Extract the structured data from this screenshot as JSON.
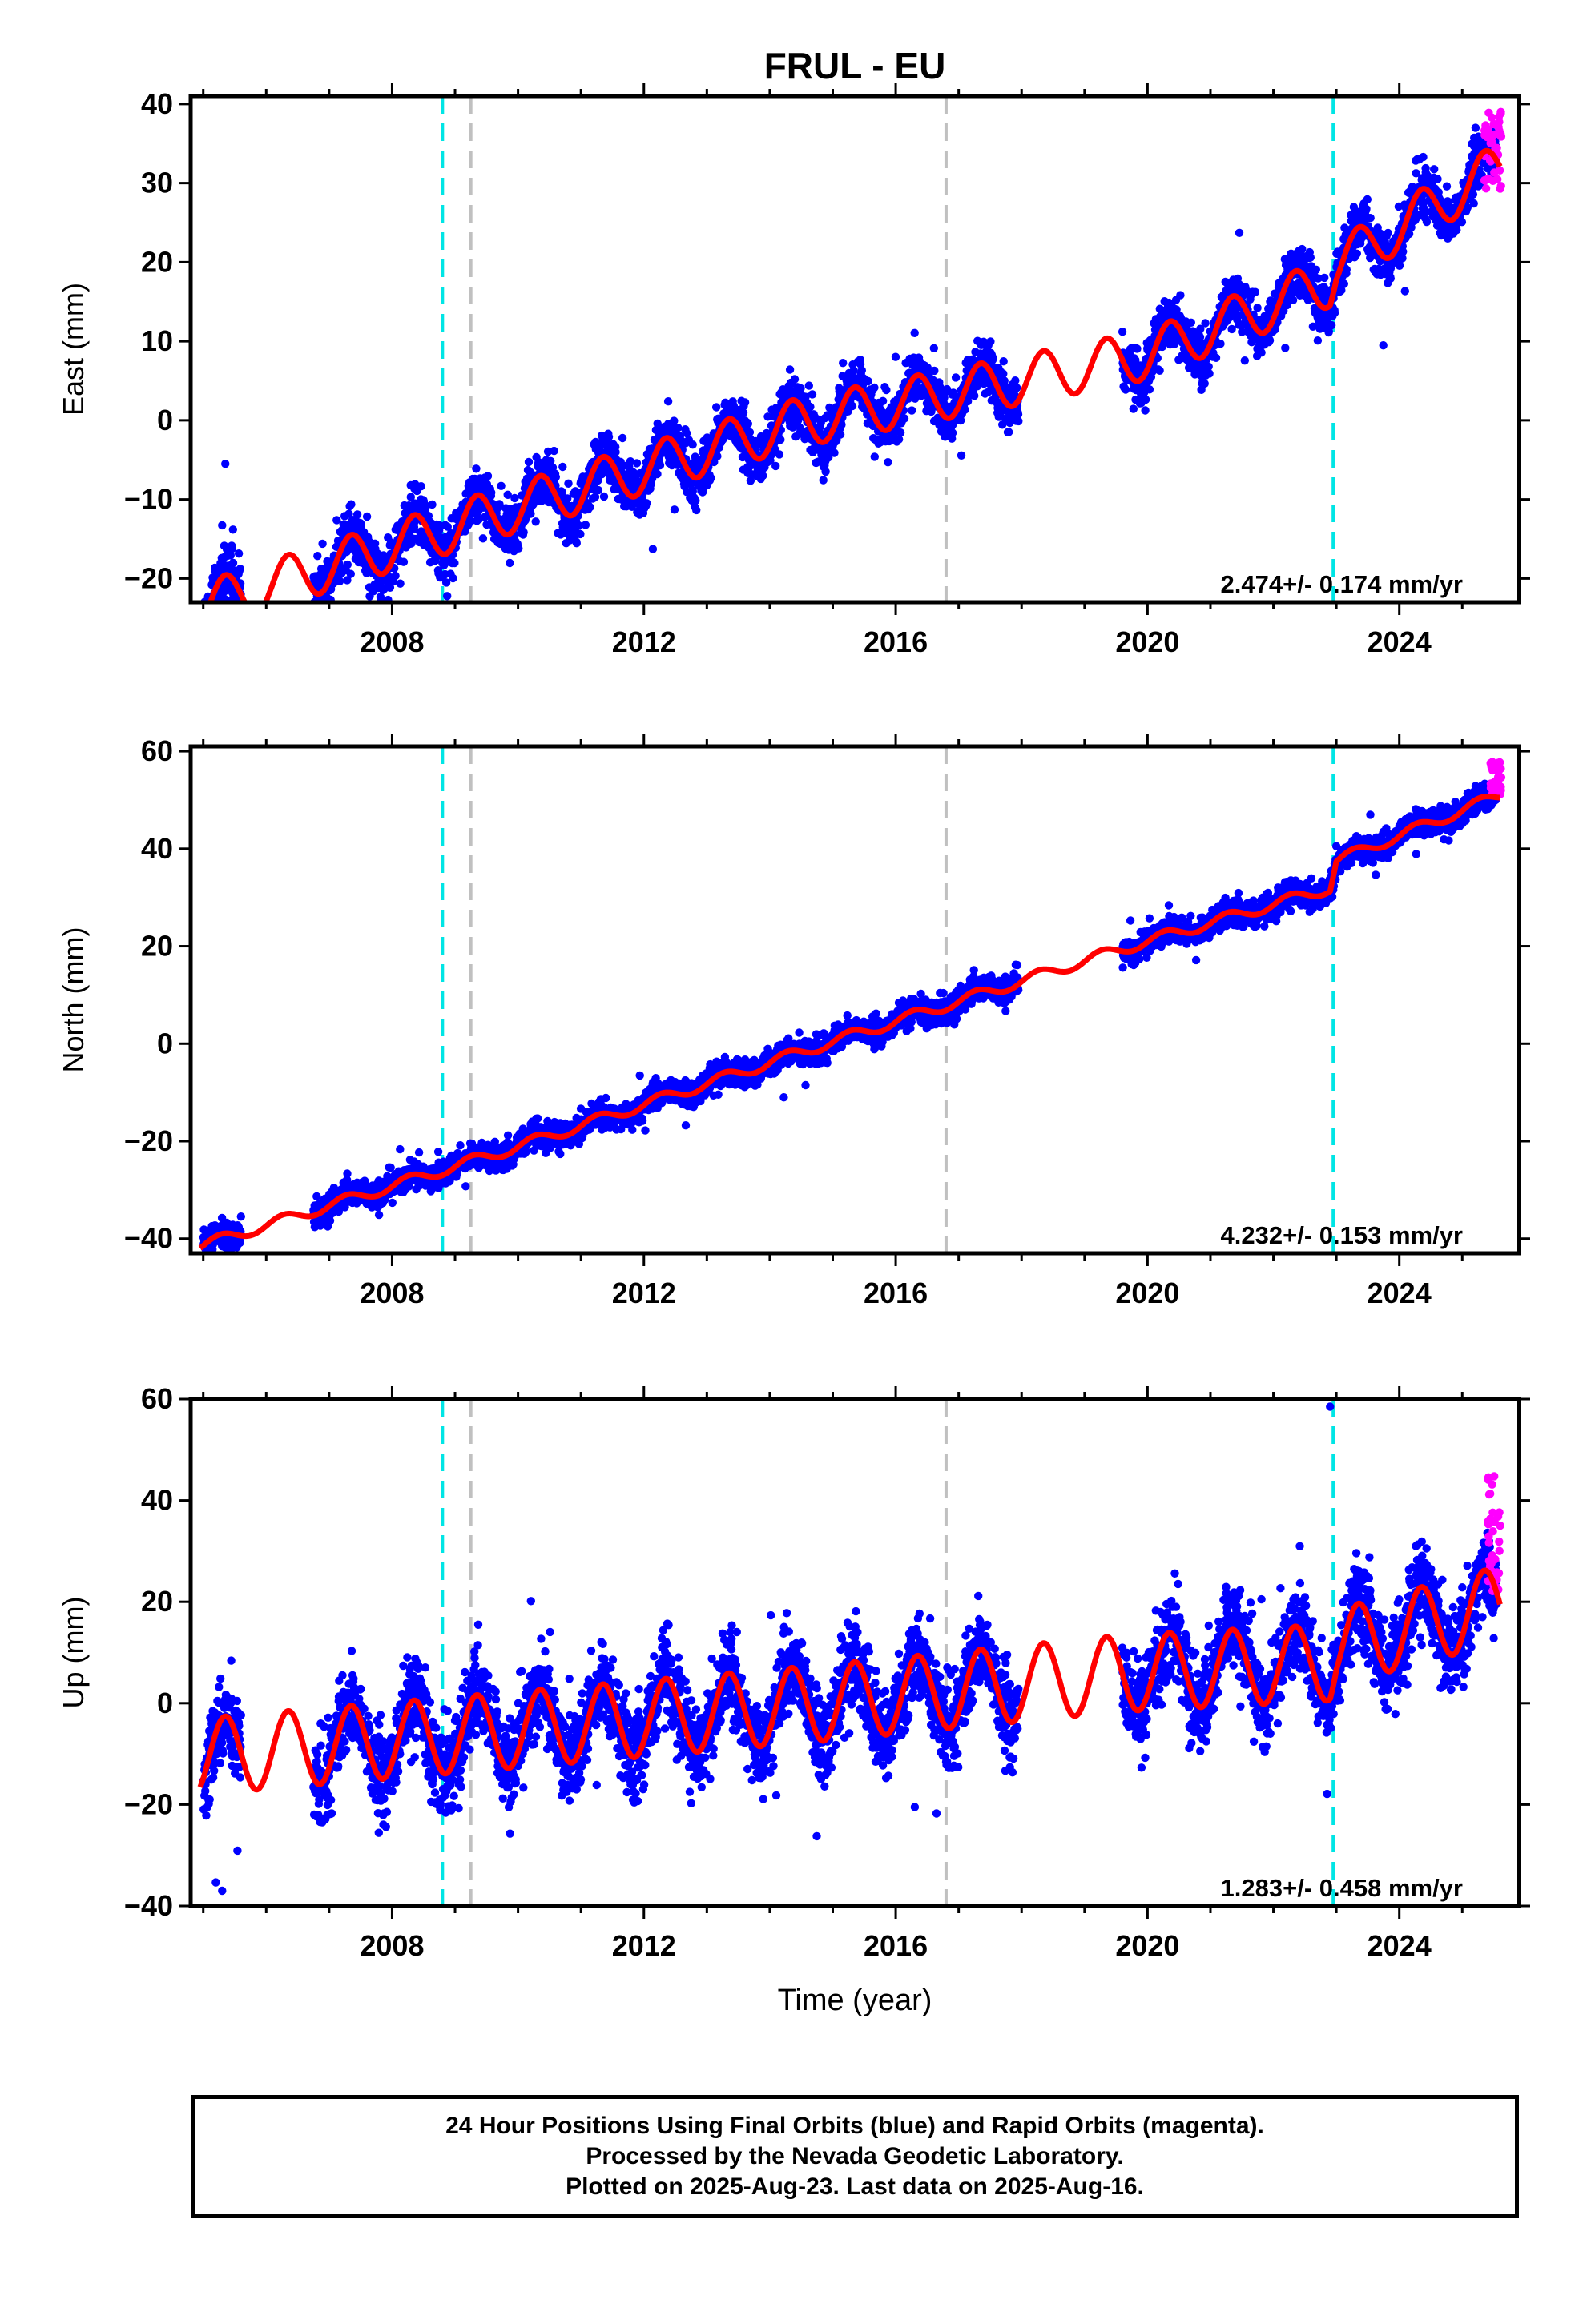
{
  "figure": {
    "title": "FRUL - EU",
    "xlabel": "Time (year)",
    "footer": {
      "line1": "24 Hour Positions Using Final Orbits (blue) and Rapid Orbits (magenta).",
      "line2": "Processed by the Nevada Geodetic Laboratory.",
      "line3": "Plotted on 2025-Aug-23. Last data on 2025-Aug-16."
    }
  },
  "colors": {
    "final_orbits": "#0000ff",
    "rapid_orbits": "#ff00ff",
    "model": "#ff0000",
    "event_cyan": "#00e5e5",
    "event_gray": "#c0c0c0"
  },
  "chart_data": [
    {
      "type": "scatter",
      "component": "east",
      "ylabel": "East (mm)",
      "xlim": [
        2004.8,
        2025.9
      ],
      "ylim": [
        -23,
        41
      ],
      "xticks": [
        2008,
        2012,
        2016,
        2020,
        2024
      ],
      "xtick_labels": [
        "2008",
        "2012",
        "2016",
        "2020",
        "2024"
      ],
      "yticks": [
        -20,
        -10,
        0,
        10,
        20,
        30,
        40
      ],
      "ytick_labels": [
        "−20",
        "−10",
        "0",
        "10",
        "20",
        "30",
        "40"
      ],
      "rate_text": "2.474+/- 0.174 mm/yr",
      "model": {
        "offset": -23.7,
        "breakpoints": [
          [
            2004.95,
            0
          ],
          [
            2006.7,
            4.5
          ],
          [
            2009.9,
            12.5
          ],
          [
            2014.5,
            23.5
          ],
          [
            2017.8,
            28.5
          ],
          [
            2020.0,
            32.0
          ],
          [
            2022.9,
            41.2
          ],
          [
            2023.0,
            43.3
          ],
          [
            2025.6,
            55.8
          ]
        ],
        "amplitude": 3.1,
        "phase": 0.0,
        "offsets": []
      },
      "segments": [
        [
          2005.0,
          2005.6
        ],
        [
          2006.75,
          2017.95
        ],
        [
          2019.6,
          2025.55
        ]
      ],
      "scatter_sigma": 1.6,
      "rapid": {
        "x_range": [
          2025.35,
          2025.62
        ],
        "y_range": [
          29,
          39
        ]
      },
      "outliers": [
        [
          2005.35,
          -5.5
        ]
      ],
      "events": [
        {
          "x": 2008.8,
          "kind": "cyan"
        },
        {
          "x": 2009.25,
          "kind": "gray"
        },
        {
          "x": 2016.8,
          "kind": "gray"
        },
        {
          "x": 2022.95,
          "kind": "cyan"
        }
      ]
    },
    {
      "type": "scatter",
      "component": "north",
      "ylabel": "North (mm)",
      "xlim": [
        2004.8,
        2025.9
      ],
      "ylim": [
        -43,
        61
      ],
      "xticks": [
        2008,
        2012,
        2016,
        2020,
        2024
      ],
      "xtick_labels": [
        "2008",
        "2012",
        "2016",
        "2020",
        "2024"
      ],
      "yticks": [
        -40,
        -20,
        0,
        20,
        40,
        60
      ],
      "ytick_labels": [
        "−40",
        "−20",
        "0",
        "20",
        "40",
        "60"
      ],
      "rate_text": "4.232+/- 0.153 mm/yr",
      "model": {
        "offset": -41.5,
        "breakpoints": [
          [
            2004.95,
            0
          ],
          [
            2009.9,
            20
          ],
          [
            2014.9,
            41.5
          ],
          [
            2019.6,
            61
          ],
          [
            2022.9,
            73.5
          ],
          [
            2023.0,
            79
          ],
          [
            2025.6,
            92.5
          ]
        ],
        "amplitude": 1.1,
        "phase": 0.5,
        "offsets": []
      },
      "segments": [
        [
          2005.0,
          2005.6
        ],
        [
          2006.75,
          2017.95
        ],
        [
          2019.6,
          2025.55
        ]
      ],
      "scatter_sigma": 1.3,
      "rapid": {
        "x_range": [
          2025.45,
          2025.62
        ],
        "y_range": [
          51,
          58
        ]
      },
      "outliers": [],
      "events": [
        {
          "x": 2008.8,
          "kind": "cyan"
        },
        {
          "x": 2009.25,
          "kind": "gray"
        },
        {
          "x": 2016.8,
          "kind": "gray"
        },
        {
          "x": 2022.95,
          "kind": "cyan"
        }
      ]
    },
    {
      "type": "scatter",
      "component": "up",
      "ylabel": "Up (mm)",
      "xlim": [
        2004.8,
        2025.9
      ],
      "ylim": [
        -40,
        60
      ],
      "xticks": [
        2008,
        2012,
        2016,
        2020,
        2024
      ],
      "xtick_labels": [
        "2008",
        "2012",
        "2016",
        "2020",
        "2024"
      ],
      "yticks": [
        -40,
        -20,
        0,
        20,
        40,
        60
      ],
      "ytick_labels": [
        "−40",
        "−20",
        "0",
        "20",
        "40",
        "60"
      ],
      "rate_text": "1.283+/- 0.458 mm/yr",
      "model": {
        "offset": -10.5,
        "breakpoints": [
          [
            2004.95,
            0
          ],
          [
            2009.9,
            5.2
          ],
          [
            2014.9,
            10.6
          ],
          [
            2019.6,
            16.4
          ],
          [
            2022.9,
            18.5
          ],
          [
            2023.0,
            21.5
          ],
          [
            2025.6,
            30
          ]
        ],
        "amplitude": 7.5,
        "phase": 0.0,
        "offsets": []
      },
      "segments": [
        [
          2005.0,
          2005.6
        ],
        [
          2006.75,
          2017.95
        ],
        [
          2019.6,
          2025.55
        ]
      ],
      "scatter_sigma": 4.2,
      "rapid": {
        "x_range": [
          2025.4,
          2025.62
        ],
        "y_range": [
          22,
          45
        ]
      },
      "outliers": [
        [
          2022.9,
          58.5
        ],
        [
          2005.3,
          -37
        ]
      ],
      "events": [
        {
          "x": 2008.8,
          "kind": "cyan"
        },
        {
          "x": 2009.25,
          "kind": "gray"
        },
        {
          "x": 2016.8,
          "kind": "gray"
        },
        {
          "x": 2022.95,
          "kind": "cyan"
        }
      ]
    }
  ]
}
